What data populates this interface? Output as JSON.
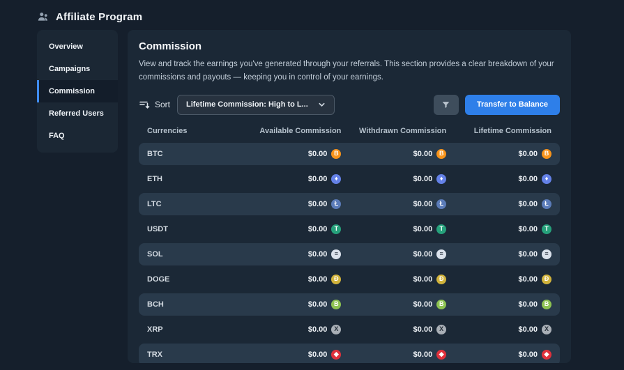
{
  "header": {
    "title": "Affiliate Program"
  },
  "sidebar": {
    "items": [
      {
        "label": "Overview",
        "active": false
      },
      {
        "label": "Campaigns",
        "active": false
      },
      {
        "label": "Commission",
        "active": true
      },
      {
        "label": "Referred Users",
        "active": false
      },
      {
        "label": "FAQ",
        "active": false
      }
    ]
  },
  "main": {
    "title": "Commission",
    "description": "View and track the earnings you've generated through your referrals. This section provides a clear breakdown of your commissions and payouts — keeping you in control of your earnings.",
    "sort": {
      "label": "Sort",
      "selected": "Lifetime Commission: High to L...",
      "chevron_icon": "chevron-down-icon"
    },
    "filter_icon": "filter-funnel-icon",
    "transfer_button_label": "Transfer to Balance"
  },
  "table": {
    "columns": [
      "Currencies",
      "Available Commission",
      "Withdrawn Commission",
      "Lifetime Commission"
    ],
    "rows": [
      {
        "currency": "BTC",
        "available": "$0.00",
        "withdrawn": "$0.00",
        "lifetime": "$0.00",
        "icon": {
          "name": "btc-icon",
          "glyph": "B",
          "bg": "#f7931a",
          "fg": "#ffffff"
        }
      },
      {
        "currency": "ETH",
        "available": "$0.00",
        "withdrawn": "$0.00",
        "lifetime": "$0.00",
        "icon": {
          "name": "eth-icon",
          "glyph": "♦",
          "bg": "#6481e7",
          "fg": "#ffffff"
        }
      },
      {
        "currency": "LTC",
        "available": "$0.00",
        "withdrawn": "$0.00",
        "lifetime": "$0.00",
        "icon": {
          "name": "ltc-icon",
          "glyph": "Ł",
          "bg": "#5b7cb9",
          "fg": "#ffffff"
        }
      },
      {
        "currency": "USDT",
        "available": "$0.00",
        "withdrawn": "$0.00",
        "lifetime": "$0.00",
        "icon": {
          "name": "usdt-icon",
          "glyph": "T",
          "bg": "#26a17b",
          "fg": "#ffffff"
        }
      },
      {
        "currency": "SOL",
        "available": "$0.00",
        "withdrawn": "$0.00",
        "lifetime": "$0.00",
        "icon": {
          "name": "sol-icon",
          "glyph": "≡",
          "bg": "#dbe2ec",
          "fg": "#2a3440"
        }
      },
      {
        "currency": "DOGE",
        "available": "$0.00",
        "withdrawn": "$0.00",
        "lifetime": "$0.00",
        "icon": {
          "name": "doge-icon",
          "glyph": "Ð",
          "bg": "#d1b33c",
          "fg": "#ffffff"
        }
      },
      {
        "currency": "BCH",
        "available": "$0.00",
        "withdrawn": "$0.00",
        "lifetime": "$0.00",
        "icon": {
          "name": "bch-icon",
          "glyph": "B",
          "bg": "#8dc351",
          "fg": "#ffffff"
        }
      },
      {
        "currency": "XRP",
        "available": "$0.00",
        "withdrawn": "$0.00",
        "lifetime": "$0.00",
        "icon": {
          "name": "xrp-icon",
          "glyph": "X",
          "bg": "#a9afb6",
          "fg": "#232c36"
        }
      },
      {
        "currency": "TRX",
        "available": "$0.00",
        "withdrawn": "$0.00",
        "lifetime": "$0.00",
        "icon": {
          "name": "trx-icon",
          "glyph": "◆",
          "bg": "#e0313c",
          "fg": "#ffffff"
        }
      }
    ]
  },
  "colors": {
    "page_bg": "#151f2c",
    "panel_bg": "#1b2836",
    "row_stripe": "#293a4b",
    "accent_blue": "#2e7fe9",
    "sidebar_active_bar": "#3f8cff",
    "filter_button_bg": "#3e4d5c"
  }
}
